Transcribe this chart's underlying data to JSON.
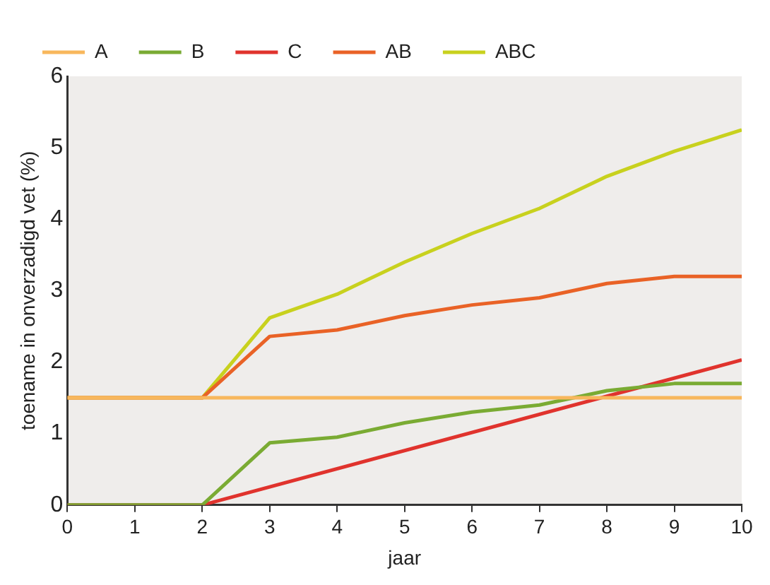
{
  "chart_data": {
    "type": "line",
    "xlabel": "jaar",
    "ylabel": "toename in onverzadigd vet (%)",
    "xlim": [
      0,
      10
    ],
    "xticks": [
      0,
      1,
      2,
      3,
      4,
      5,
      6,
      7,
      8,
      9,
      10
    ],
    "ylim": [
      0,
      6
    ],
    "yticks": [
      0,
      1,
      2,
      3,
      4,
      5,
      6
    ],
    "grid": false,
    "legend": "top left",
    "marker": "none",
    "line_style": "solid",
    "series": [
      {
        "name": "A",
        "color": "#f8b75c",
        "x": [
          0,
          10
        ],
        "values": [
          1.5,
          1.5
        ]
      },
      {
        "name": "B",
        "color": "#7aab33",
        "x": [
          0,
          1,
          2,
          3,
          4,
          5,
          6,
          7,
          8,
          9,
          10
        ],
        "values": [
          0,
          0,
          0,
          0.87,
          0.95,
          1.15,
          1.3,
          1.4,
          1.6,
          1.7,
          1.7
        ]
      },
      {
        "name": "C",
        "color": "#e0332d",
        "x": [
          0,
          2,
          10
        ],
        "values": [
          0,
          0,
          2.03
        ]
      },
      {
        "name": "AB",
        "color": "#e96226",
        "x": [
          0,
          1,
          2,
          3,
          4,
          5,
          6,
          7,
          8,
          9,
          10
        ],
        "values": [
          1.5,
          1.5,
          1.5,
          2.36,
          2.45,
          2.65,
          2.8,
          2.9,
          3.1,
          3.2,
          3.2
        ]
      },
      {
        "name": "ABC",
        "color": "#c8d11e",
        "x": [
          0,
          1,
          2,
          3,
          4,
          5,
          6,
          7,
          8,
          9,
          10
        ],
        "values": [
          1.5,
          1.5,
          1.5,
          2.62,
          2.95,
          3.4,
          3.8,
          4.15,
          4.6,
          4.95,
          5.25
        ]
      }
    ]
  }
}
